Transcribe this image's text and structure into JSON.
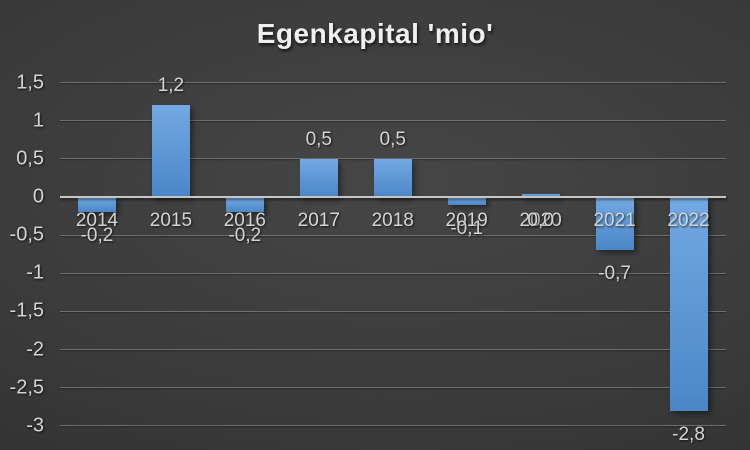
{
  "chart_data": {
    "type": "bar",
    "title": "Egenkapital 'mio'",
    "categories": [
      "2014",
      "2015",
      "2016",
      "2017",
      "2018",
      "2019",
      "2020",
      "2021",
      "2022"
    ],
    "values": [
      -0.2,
      1.2,
      -0.2,
      0.5,
      0.5,
      -0.1,
      0.0,
      -0.7,
      -2.8
    ],
    "value_labels": [
      "-0,2",
      "1,2",
      "-0,2",
      "0,5",
      "0,5",
      "-0,1",
      "0,0",
      "-0,7",
      "-2,8"
    ],
    "xlabel": "",
    "ylabel": "",
    "y_axis": {
      "min": -3,
      "max": 1.5,
      "step": 0.5,
      "tick_values": [
        1.5,
        1,
        0.5,
        0,
        -0.5,
        -1,
        -1.5,
        -2,
        -2.5,
        -3
      ],
      "tick_labels": [
        "1,5",
        "1",
        "0,5",
        "0",
        "-0,5",
        "-1",
        "-1,5",
        "-2",
        "-2,5",
        "-3"
      ]
    },
    "grid": true,
    "legend": "none",
    "decimal_separator": ",",
    "colors": {
      "bar_gradient_top": "#73a9e2",
      "bar_gradient_bottom": "#4a86c7",
      "background_center": "#464646",
      "background_edge": "#252525",
      "gridline": "#6e6e6e",
      "zero_axis_line": "#c6c6c6",
      "label_text": "#d4d4d4",
      "title_text": "#efefef"
    }
  }
}
